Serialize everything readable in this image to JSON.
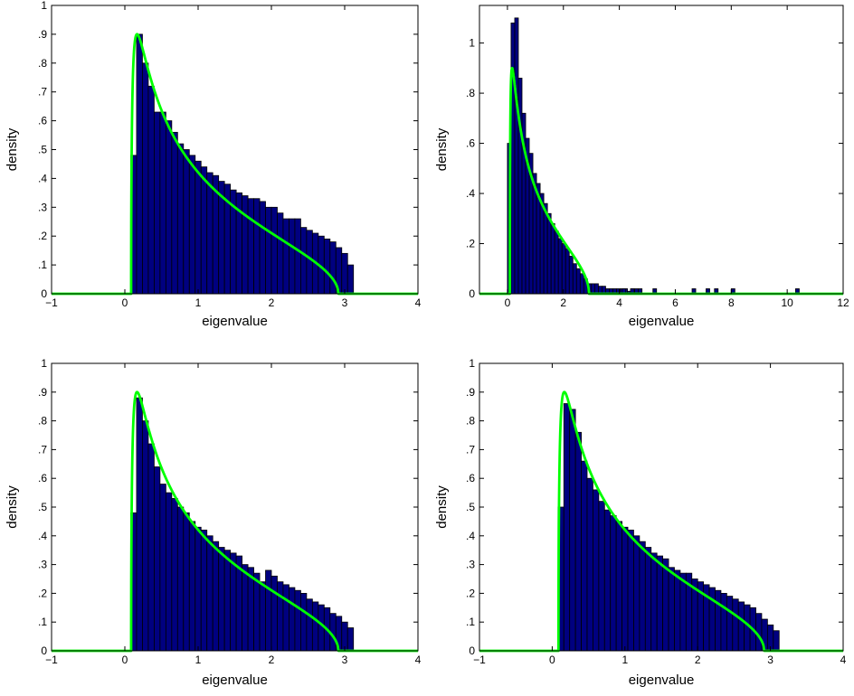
{
  "figure": {
    "layout": "2x2 grid"
  },
  "colors": {
    "bar_fill": "#000080",
    "bar_edge": "#000000",
    "curve": "#00ff00",
    "axes": "#000000",
    "background": "#ffffff"
  },
  "chart_data": [
    {
      "type": "bar",
      "panel": "top-left",
      "xlabel": "eigenvalue",
      "ylabel": "density",
      "xlim": [
        -1,
        4
      ],
      "ylim": [
        0,
        1
      ],
      "xticks": [
        -1,
        0,
        1,
        2,
        3,
        4
      ],
      "yticks": [
        0,
        0.1,
        0.2,
        0.3,
        0.4,
        0.5,
        0.6,
        0.7,
        0.8,
        0.9,
        1
      ],
      "grid": false,
      "bin_start": 0.08,
      "bin_width": 0.08,
      "values": [
        0.48,
        0.9,
        0.8,
        0.72,
        0.63,
        0.63,
        0.6,
        0.56,
        0.52,
        0.5,
        0.48,
        0.46,
        0.44,
        0.42,
        0.41,
        0.39,
        0.38,
        0.36,
        0.35,
        0.34,
        0.33,
        0.33,
        0.32,
        0.3,
        0.3,
        0.28,
        0.26,
        0.26,
        0.26,
        0.23,
        0.22,
        0.21,
        0.2,
        0.19,
        0.18,
        0.16,
        0.14,
        0.1
      ],
      "curve": {
        "name": "",
        "lambda_minus": 0.0858,
        "lambda_plus": 2.9142,
        "y": 0.5,
        "xrange": [
          -1,
          4
        ]
      }
    },
    {
      "type": "bar",
      "panel": "top-right",
      "xlabel": "eigenvalue",
      "ylabel": "density",
      "xlim": [
        -1,
        12
      ],
      "ylim": [
        0,
        1.15
      ],
      "xticks": [
        0,
        2,
        4,
        6,
        8,
        10,
        12
      ],
      "yticks": [
        0,
        0.2,
        0.4,
        0.6,
        0.8,
        1
      ],
      "grid": false,
      "bin_start": 0.0,
      "bin_width": 0.13,
      "values": [
        0.6,
        1.08,
        1.1,
        0.86,
        0.72,
        0.62,
        0.56,
        0.48,
        0.44,
        0.4,
        0.36,
        0.32,
        0.28,
        0.25,
        0.22,
        0.2,
        0.18,
        0.15,
        0.12,
        0.1,
        0.08,
        0.06,
        0.04,
        0.04,
        0.04,
        0.03,
        0.03,
        0.02,
        0.02,
        0.02,
        0.02,
        0.02,
        0.02,
        0.01,
        0.02,
        0.02,
        0.02,
        0.0,
        0.0,
        0.0,
        0.02
      ],
      "outliers": [
        {
          "x": 4.1,
          "value": 0.02
        },
        {
          "x": 4.4,
          "value": 0.02
        },
        {
          "x": 6.6,
          "value": 0.02
        },
        {
          "x": 7.1,
          "value": 0.02
        },
        {
          "x": 7.4,
          "value": 0.02
        },
        {
          "x": 8.0,
          "value": 0.02
        },
        {
          "x": 10.3,
          "value": 0.02
        }
      ],
      "curve": {
        "name": "",
        "lambda_minus": 0.0858,
        "lambda_plus": 2.9142,
        "y": 0.5,
        "xrange": [
          -1,
          12
        ]
      }
    },
    {
      "type": "bar",
      "panel": "bottom-left",
      "xlabel": "eigenvalue",
      "ylabel": "density",
      "xlim": [
        -1,
        4
      ],
      "ylim": [
        0,
        1
      ],
      "xticks": [
        -1,
        0,
        1,
        2,
        3,
        4
      ],
      "yticks": [
        0,
        0.1,
        0.2,
        0.3,
        0.4,
        0.5,
        0.6,
        0.7,
        0.8,
        0.9,
        1
      ],
      "grid": false,
      "bin_start": 0.08,
      "bin_width": 0.08,
      "values": [
        0.48,
        0.88,
        0.8,
        0.72,
        0.64,
        0.58,
        0.55,
        0.53,
        0.5,
        0.48,
        0.45,
        0.43,
        0.42,
        0.4,
        0.38,
        0.36,
        0.35,
        0.34,
        0.33,
        0.3,
        0.29,
        0.27,
        0.24,
        0.28,
        0.26,
        0.24,
        0.23,
        0.22,
        0.21,
        0.2,
        0.18,
        0.17,
        0.16,
        0.15,
        0.13,
        0.12,
        0.1,
        0.08
      ],
      "curve": {
        "name": "",
        "lambda_minus": 0.0858,
        "lambda_plus": 2.9142,
        "y": 0.5,
        "xrange": [
          -1,
          4
        ]
      }
    },
    {
      "type": "bar",
      "panel": "bottom-right",
      "xlabel": "eigenvalue",
      "ylabel": "density",
      "xlim": [
        -1,
        4
      ],
      "ylim": [
        0,
        1
      ],
      "xticks": [
        -1,
        0,
        1,
        2,
        3,
        4
      ],
      "yticks": [
        0,
        0.1,
        0.2,
        0.3,
        0.4,
        0.5,
        0.6,
        0.7,
        0.8,
        0.9,
        1
      ],
      "grid": false,
      "bin_start": 0.08,
      "bin_width": 0.08,
      "values": [
        0.5,
        0.86,
        0.84,
        0.76,
        0.66,
        0.6,
        0.56,
        0.52,
        0.49,
        0.47,
        0.45,
        0.43,
        0.42,
        0.4,
        0.38,
        0.36,
        0.34,
        0.33,
        0.32,
        0.29,
        0.28,
        0.27,
        0.27,
        0.25,
        0.24,
        0.23,
        0.22,
        0.21,
        0.2,
        0.19,
        0.18,
        0.17,
        0.16,
        0.15,
        0.13,
        0.11,
        0.09,
        0.07
      ],
      "curve": {
        "name": "",
        "lambda_minus": 0.0858,
        "lambda_plus": 2.9142,
        "y": 0.5,
        "xrange": [
          -1,
          4
        ]
      }
    }
  ]
}
